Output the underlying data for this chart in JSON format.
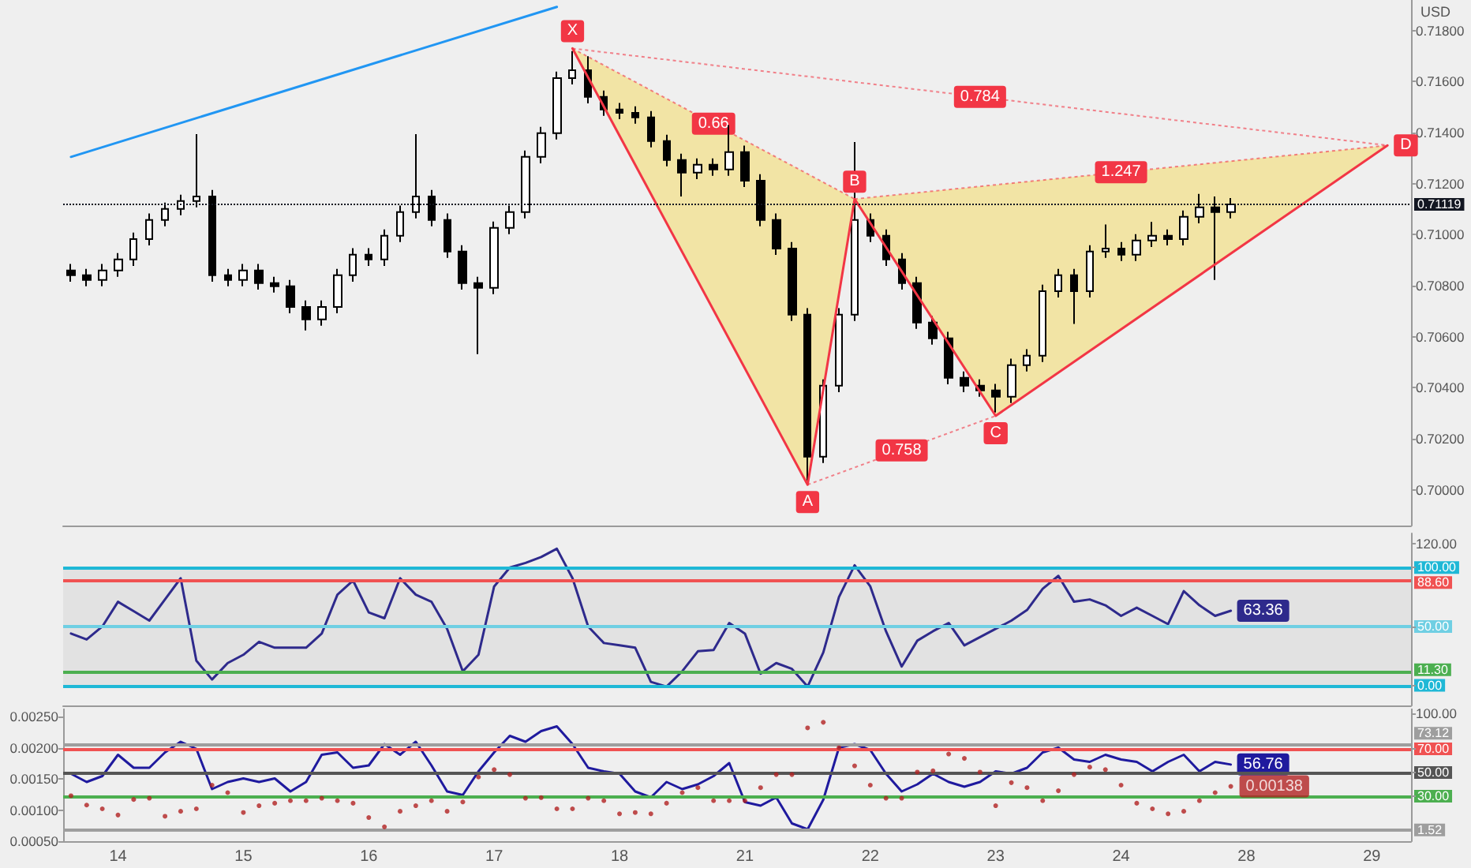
{
  "chart_data": [
    {
      "type": "candlestick",
      "ylabel": "USD",
      "categories": [
        null,
        null,
        null,
        "14",
        null,
        null,
        null,
        null,
        null,
        null,
        null,
        "15",
        null,
        null,
        null,
        null,
        null,
        null,
        null,
        "16",
        null,
        null,
        null,
        null,
        null,
        null,
        null,
        "17",
        null,
        null,
        null,
        null,
        null,
        null,
        null,
        "18",
        null,
        null,
        null,
        null,
        null,
        null,
        null,
        "21",
        null,
        null,
        null,
        null,
        null,
        null,
        null,
        "22",
        null,
        null,
        null,
        null,
        null,
        null,
        null,
        "23",
        null,
        null,
        null,
        null,
        null,
        null,
        null,
        "24",
        null,
        null,
        null,
        null,
        null,
        null,
        null,
        "28",
        null,
        null,
        null,
        null,
        null,
        null,
        null,
        "29",
        null,
        null
      ],
      "series": [
        {
          "type": "candlestick",
          "color": "#000000",
          "ohlc": [
            [
              0.7086,
              0.70885,
              0.70816,
              0.70841
            ],
            [
              0.70841,
              0.70866,
              0.70798,
              0.70823
            ],
            [
              0.70823,
              0.70885,
              0.70798,
              0.7086
            ],
            [
              0.7086,
              0.70928,
              0.70835,
              0.70903
            ],
            [
              0.70903,
              0.71008,
              0.70878,
              0.70983
            ],
            [
              0.70983,
              0.71083,
              0.70958,
              0.71058
            ],
            [
              0.71058,
              0.71126,
              0.71033,
              0.71101
            ],
            [
              0.71101,
              0.71157,
              0.71076,
              0.71132
            ],
            [
              0.71132,
              0.71394,
              0.71107,
              0.7115
            ],
            [
              0.7115,
              0.71175,
              0.70816,
              0.70841
            ],
            [
              0.70841,
              0.70866,
              0.70798,
              0.70823
            ],
            [
              0.70823,
              0.70885,
              0.70798,
              0.7086
            ],
            [
              0.7086,
              0.70885,
              0.70785,
              0.7081
            ],
            [
              0.7081,
              0.70835,
              0.70773,
              0.70798
            ],
            [
              0.70798,
              0.70823,
              0.70692,
              0.70717
            ],
            [
              0.70717,
              0.70742,
              0.70625,
              0.70668
            ],
            [
              0.70668,
              0.70742,
              0.70643,
              0.70717
            ],
            [
              0.70717,
              0.70866,
              0.70692,
              0.70841
            ],
            [
              0.70841,
              0.70947,
              0.70816,
              0.70922
            ],
            [
              0.70922,
              0.70947,
              0.70878,
              0.70903
            ],
            [
              0.70903,
              0.71021,
              0.70878,
              0.70996
            ],
            [
              0.70996,
              0.71114,
              0.70971,
              0.71089
            ],
            [
              0.71089,
              0.71394,
              0.71064,
              0.7115
            ],
            [
              0.7115,
              0.71175,
              0.71033,
              0.71058
            ],
            [
              0.71058,
              0.71083,
              0.70909,
              0.70934
            ],
            [
              0.70934,
              0.70959,
              0.70785,
              0.7081
            ],
            [
              0.7081,
              0.70835,
              0.70532,
              0.70792
            ],
            [
              0.70792,
              0.71052,
              0.70767,
              0.71027
            ],
            [
              0.71027,
              0.71114,
              0.71002,
              0.71089
            ],
            [
              0.71089,
              0.7133,
              0.71064,
              0.71305
            ],
            [
              0.71305,
              0.71423,
              0.7128,
              0.71398
            ],
            [
              0.71398,
              0.71639,
              0.71373,
              0.71614
            ],
            [
              0.71614,
              0.7172,
              0.71589,
              0.71645
            ],
            [
              0.71645,
              0.717,
              0.71515,
              0.7154
            ],
            [
              0.7154,
              0.71565,
              0.71466,
              0.71491
            ],
            [
              0.71491,
              0.71516,
              0.71453,
              0.71478
            ],
            [
              0.71478,
              0.71503,
              0.71435,
              0.7146
            ],
            [
              0.7146,
              0.71485,
              0.71342,
              0.71367
            ],
            [
              0.71367,
              0.71392,
              0.71268,
              0.71293
            ],
            [
              0.71293,
              0.71318,
              0.7115,
              0.71243
            ],
            [
              0.71243,
              0.71299,
              0.71218,
              0.71274
            ],
            [
              0.71274,
              0.71299,
              0.71231,
              0.71256
            ],
            [
              0.71256,
              0.7143,
              0.71231,
              0.71324
            ],
            [
              0.71324,
              0.71349,
              0.71187,
              0.71212
            ],
            [
              0.71212,
              0.71237,
              0.71033,
              0.71058
            ],
            [
              0.71058,
              0.71083,
              0.70921,
              0.70946
            ],
            [
              0.70946,
              0.70971,
              0.70662,
              0.70687
            ],
            [
              0.70687,
              0.70712,
              0.70037,
              0.7013
            ],
            [
              0.7013,
              0.70433,
              0.70105,
              0.70408
            ],
            [
              0.70408,
              0.70712,
              0.70383,
              0.70687
            ],
            [
              0.70687,
              0.71363,
              0.70662,
              0.71058
            ],
            [
              0.71058,
              0.71083,
              0.70971,
              0.70996
            ],
            [
              0.70996,
              0.71021,
              0.70878,
              0.70903
            ],
            [
              0.70903,
              0.70928,
              0.70785,
              0.7081
            ],
            [
              0.7081,
              0.70835,
              0.70631,
              0.70656
            ],
            [
              0.70656,
              0.70681,
              0.70569,
              0.70594
            ],
            [
              0.70594,
              0.70619,
              0.70414,
              0.70439
            ],
            [
              0.70439,
              0.70464,
              0.70383,
              0.70408
            ],
            [
              0.70408,
              0.70433,
              0.70365,
              0.7039
            ],
            [
              0.7039,
              0.70415,
              0.70303,
              0.70365
            ],
            [
              0.70365,
              0.70514,
              0.7034,
              0.70489
            ],
            [
              0.70489,
              0.70551,
              0.70464,
              0.70526
            ],
            [
              0.70526,
              0.70804,
              0.70501,
              0.70779
            ],
            [
              0.70779,
              0.70866,
              0.70754,
              0.70841
            ],
            [
              0.70841,
              0.70866,
              0.7065,
              0.70779
            ],
            [
              0.70779,
              0.70959,
              0.70754,
              0.70934
            ],
            [
              0.70934,
              0.7104,
              0.70909,
              0.70946
            ],
            [
              0.70946,
              0.70971,
              0.70897,
              0.70922
            ],
            [
              0.70922,
              0.71002,
              0.70897,
              0.70977
            ],
            [
              0.70977,
              0.7105,
              0.70952,
              0.70996
            ],
            [
              0.70996,
              0.71021,
              0.70958,
              0.70983
            ],
            [
              0.70983,
              0.71095,
              0.70958,
              0.7107
            ],
            [
              0.7107,
              0.7116,
              0.71045,
              0.71107
            ],
            [
              0.71107,
              0.7115,
              0.70823,
              0.71089
            ],
            [
              0.71089,
              0.71144,
              0.71064,
              0.71119
            ],
            null,
            null,
            null,
            null,
            null,
            null,
            null,
            null,
            null,
            null,
            null
          ]
        },
        {
          "type": "line",
          "color": "#2196f3",
          "values": [
            0.71305,
            null,
            null,
            null,
            null,
            null,
            null,
            null,
            null,
            null,
            null,
            null,
            null,
            null,
            null,
            null,
            null,
            null,
            null,
            null,
            null,
            null,
            null,
            null,
            null,
            null,
            null,
            null,
            null,
            null,
            null,
            0.71893,
            null,
            null,
            null,
            null,
            null,
            null,
            null,
            null,
            null,
            null,
            null,
            null,
            null,
            null,
            null,
            null,
            null,
            null,
            null,
            null,
            null,
            null,
            null,
            null,
            null,
            null,
            null,
            null,
            null,
            null,
            null,
            null,
            null,
            null,
            null,
            null,
            null,
            null,
            null,
            null,
            null,
            null,
            null,
            null,
            null,
            null,
            null,
            null,
            null,
            null,
            null,
            null,
            null,
            null
          ]
        },
        {
          "type": "line",
          "color": "#f23645",
          "values": [
            null,
            null,
            null,
            null,
            null,
            null,
            null,
            null,
            null,
            null,
            null,
            null,
            null,
            null,
            null,
            null,
            null,
            null,
            null,
            null,
            null,
            null,
            null,
            null,
            null,
            null,
            null,
            null,
            null,
            null,
            null,
            null,
            0.7173,
            null,
            null,
            null,
            null,
            null,
            null,
            null,
            null,
            null,
            null,
            null,
            null,
            null,
            null,
            0.7002,
            null,
            null,
            0.7114,
            null,
            null,
            null,
            null,
            null,
            null,
            null,
            null,
            0.7029,
            null,
            null,
            null,
            null,
            null,
            null,
            null,
            null,
            null,
            null,
            null,
            null,
            null,
            null,
            null,
            null,
            null,
            null,
            null,
            null,
            null,
            null,
            null,
            null,
            0.7135,
            null
          ],
          "value_labels": [
            null,
            null,
            null,
            null,
            null,
            null,
            null,
            null,
            null,
            null,
            null,
            null,
            null,
            null,
            null,
            null,
            null,
            null,
            null,
            null,
            null,
            null,
            null,
            null,
            null,
            null,
            null,
            null,
            null,
            null,
            null,
            null,
            "X",
            null,
            null,
            null,
            null,
            null,
            null,
            null,
            null,
            null,
            null,
            null,
            null,
            null,
            null,
            "A",
            null,
            null,
            "B",
            null,
            null,
            null,
            null,
            null,
            null,
            null,
            null,
            "C",
            null,
            null,
            null,
            null,
            null,
            null,
            null,
            null,
            null,
            null,
            null,
            null,
            null,
            null,
            null,
            null,
            null,
            null,
            null,
            null,
            null,
            null,
            null,
            null,
            "D",
            null
          ]
        }
      ],
      "annotations": [
        "0.66",
        "0.784",
        "0.758",
        "1.247"
      ],
      "ylim": [
        0.6986,
        0.7192
      ],
      "yticks": [
        {
          "value": 0.7,
          "label": "0.70000"
        },
        {
          "value": 0.702,
          "label": "0.70200"
        },
        {
          "value": 0.704,
          "label": "0.70400"
        },
        {
          "value": 0.706,
          "label": "0.70600"
        },
        {
          "value": 0.708,
          "label": "0.70800"
        },
        {
          "value": 0.71,
          "label": "0.71000"
        },
        {
          "value": 0.712,
          "label": "0.71200"
        },
        {
          "value": 0.714,
          "label": "0.71400"
        },
        {
          "value": 0.716,
          "label": "0.71600"
        },
        {
          "value": 0.718,
          "label": "0.71800"
        }
      ],
      "ref_lines": [
        {
          "axis": "y",
          "value": 0.71119,
          "label": "0.71119",
          "color": "#131722",
          "line_style": "dotted"
        }
      ],
      "tick_labels": "y"
    },
    {
      "type": "line",
      "categories": [
        null,
        null,
        null,
        "14",
        null,
        null,
        null,
        null,
        null,
        null,
        null,
        "15",
        null,
        null,
        null,
        null,
        null,
        null,
        null,
        "16",
        null,
        null,
        null,
        null,
        null,
        null,
        null,
        "17",
        null,
        null,
        null,
        null,
        null,
        null,
        null,
        "18",
        null,
        null,
        null,
        null,
        null,
        null,
        null,
        "21",
        null,
        null,
        null,
        null,
        null,
        null,
        null,
        "22",
        null,
        null,
        null,
        null,
        null,
        null,
        null,
        "23",
        null,
        null,
        null,
        null,
        null,
        null,
        null,
        "24",
        null,
        null,
        null,
        null,
        null,
        null,
        null,
        "28",
        null,
        null,
        null,
        null,
        null,
        null,
        null,
        "29",
        null,
        null
      ],
      "series": [
        {
          "color": "#2e2a8c",
          "values": [
            44,
            39,
            50,
            71,
            63,
            55,
            73,
            91,
            21,
            5,
            19,
            26,
            37,
            32,
            32,
            32,
            44,
            77,
            89,
            62,
            57,
            91,
            77,
            71,
            48,
            12,
            26,
            84,
            100,
            104,
            109,
            116,
            91,
            50,
            36,
            34,
            32,
            3,
            -1,
            12,
            29,
            30,
            53,
            44,
            10,
            19,
            14,
            -1,
            28,
            75,
            102,
            84,
            46,
            16,
            38,
            46,
            53,
            34,
            41,
            48,
            55,
            64,
            82,
            93,
            71,
            73,
            68,
            59,
            66,
            59,
            52,
            80,
            68,
            59,
            63.36,
            null,
            null,
            null,
            null,
            null,
            null,
            null,
            null,
            null,
            null,
            null
          ],
          "value_labels": [
            null,
            null,
            null,
            null,
            null,
            null,
            null,
            null,
            null,
            null,
            null,
            null,
            null,
            null,
            null,
            null,
            null,
            null,
            null,
            null,
            null,
            null,
            null,
            null,
            null,
            null,
            null,
            null,
            null,
            null,
            null,
            null,
            null,
            null,
            null,
            null,
            null,
            null,
            null,
            null,
            null,
            null,
            null,
            null,
            null,
            null,
            null,
            null,
            null,
            null,
            null,
            null,
            null,
            null,
            null,
            null,
            null,
            null,
            null,
            null,
            null,
            null,
            null,
            null,
            null,
            null,
            null,
            null,
            null,
            null,
            null,
            null,
            null,
            null,
            "63.36",
            null,
            null,
            null,
            null,
            null,
            null,
            null,
            null,
            null,
            null,
            null
          ]
        }
      ],
      "ylim": [
        -17,
        129
      ],
      "yticks": [
        {
          "value": 0,
          "label": "0.00"
        },
        {
          "value": 50,
          "label": "50.00"
        },
        {
          "value": 100,
          "label": "100.00"
        },
        {
          "value": 120,
          "label": "120.00"
        }
      ],
      "ref_lines": [
        {
          "axis": "y",
          "value": 100,
          "label": null,
          "color": "#1fb8d6"
        },
        {
          "axis": "y",
          "value": 88.6,
          "label": "88.60",
          "color": "#f05252"
        },
        {
          "axis": "y",
          "value": 50,
          "label": null,
          "color": "#6fcfe3"
        },
        {
          "axis": "y",
          "value": 11.3,
          "label": "11.30",
          "color": "#4caf50"
        },
        {
          "axis": "y",
          "value": 0,
          "label": null,
          "color": "#1fb8d6"
        }
      ],
      "bands": [
        {
          "axis": "y",
          "from": 0,
          "to": 100,
          "color": "#e2e2e2"
        }
      ],
      "tick_labels": "y"
    },
    {
      "type": "line",
      "categories": [
        null,
        null,
        null,
        "14",
        null,
        null,
        null,
        null,
        null,
        null,
        null,
        "15",
        null,
        null,
        null,
        null,
        null,
        null,
        null,
        "16",
        null,
        null,
        null,
        null,
        null,
        null,
        null,
        "17",
        null,
        null,
        null,
        null,
        null,
        null,
        null,
        "18",
        null,
        null,
        null,
        null,
        null,
        null,
        null,
        "21",
        null,
        null,
        null,
        null,
        null,
        null,
        null,
        "22",
        null,
        null,
        null,
        null,
        null,
        null,
        null,
        "23",
        null,
        null,
        null,
        null,
        null,
        null,
        null,
        "24",
        null,
        null,
        null,
        null,
        null,
        null,
        null,
        "28",
        null,
        null,
        null,
        null,
        null,
        null,
        null,
        "29",
        null,
        null
      ],
      "series": [
        {
          "type": "scatter",
          "color": "#b22222",
          "marker": "circle",
          "values": [
            0.00123,
            0.00108,
            0.00102,
            0.00092,
            0.00117,
            0.00119,
            0.0009,
            0.00098,
            0.00102,
            0.0014,
            0.00128,
            0.00096,
            0.00107,
            0.00111,
            0.00115,
            0.00115,
            0.00119,
            0.00115,
            0.00111,
            0.00088,
            0.00073,
            0.00098,
            0.00107,
            0.00115,
            0.00098,
            0.00113,
            0.00153,
            0.00165,
            0.00157,
            0.00119,
            0.0012,
            0.00102,
            0.00102,
            0.00119,
            0.00115,
            0.00094,
            0.00096,
            0.00094,
            0.00111,
            0.00128,
            0.00136,
            0.00115,
            0.00115,
            0.00115,
            0.00136,
            0.00157,
            0.00157,
            0.00232,
            0.00241,
            0.002,
            0.00171,
            0.0014,
            0.00119,
            0.00119,
            0.00161,
            0.00163,
            0.0019,
            0.00183,
            0.00161,
            0.00107,
            0.00144,
            0.00136,
            0.00115,
            0.00131,
            0.00157,
            0.00169,
            0.00165,
            0.0014,
            0.00111,
            0.00102,
            0.00094,
            0.00098,
            0.00115,
            0.00128,
            0.00138,
            null,
            null,
            null,
            null,
            null,
            null,
            null,
            null,
            null,
            null,
            null
          ],
          "value_labels": [
            null,
            null,
            null,
            null,
            null,
            null,
            null,
            null,
            null,
            null,
            null,
            null,
            null,
            null,
            null,
            null,
            null,
            null,
            null,
            null,
            null,
            null,
            null,
            null,
            null,
            null,
            null,
            null,
            null,
            null,
            null,
            null,
            null,
            null,
            null,
            null,
            null,
            null,
            null,
            null,
            null,
            null,
            null,
            null,
            null,
            null,
            null,
            null,
            null,
            null,
            null,
            null,
            null,
            null,
            null,
            null,
            null,
            null,
            null,
            null,
            null,
            null,
            null,
            null,
            null,
            null,
            null,
            null,
            null,
            null,
            null,
            null,
            null,
            null,
            "0.00138",
            null,
            null,
            null,
            null,
            null,
            null,
            null,
            null,
            null,
            null,
            null
          ]
        },
        {
          "type": "line",
          "axis": "y2",
          "color": "#1f1a9e",
          "values": [
            49,
            42,
            47,
            65,
            54,
            54,
            67,
            76,
            70,
            36,
            42,
            45,
            42,
            45,
            34,
            42,
            65,
            67,
            54,
            56,
            74,
            65,
            76,
            56,
            34,
            31,
            51,
            67,
            81,
            76,
            85,
            89,
            74,
            54,
            51,
            49,
            34,
            29,
            42,
            36,
            40,
            47,
            58,
            25,
            22,
            29,
            7,
            2,
            27,
            71,
            74,
            69,
            49,
            34,
            40,
            49,
            42,
            38,
            42,
            51,
            49,
            54,
            67,
            71,
            61,
            59,
            65,
            61,
            59,
            51,
            59,
            65,
            51,
            59,
            56.76,
            null,
            null,
            null,
            null,
            null,
            null,
            null,
            null,
            null,
            null,
            null
          ],
          "value_labels": [
            null,
            null,
            null,
            null,
            null,
            null,
            null,
            null,
            null,
            null,
            null,
            null,
            null,
            null,
            null,
            null,
            null,
            null,
            null,
            null,
            null,
            null,
            null,
            null,
            null,
            null,
            null,
            null,
            null,
            null,
            null,
            null,
            null,
            null,
            null,
            null,
            null,
            null,
            null,
            null,
            null,
            null,
            null,
            null,
            null,
            null,
            null,
            null,
            null,
            null,
            null,
            null,
            null,
            null,
            null,
            null,
            null,
            null,
            null,
            null,
            null,
            null,
            null,
            null,
            null,
            null,
            null,
            null,
            null,
            null,
            null,
            null,
            null,
            null,
            "56.76",
            null,
            null,
            null,
            null,
            null,
            null,
            null,
            null,
            null,
            null,
            null
          ]
        }
      ],
      "ylim": [
        0.0005,
        0.00263
      ],
      "yticks": [
        {
          "value": 0.0005,
          "label": "0.00050"
        },
        {
          "value": 0.001,
          "label": "0.00100"
        },
        {
          "value": 0.0015,
          "label": "0.00150"
        },
        {
          "value": 0.002,
          "label": "0.00200"
        },
        {
          "value": 0.0025,
          "label": "0.00250"
        }
      ],
      "y2lim": [
        -8,
        104
      ],
      "y2ticks": [
        {
          "value": 30,
          "label": "30.00"
        },
        {
          "value": 50,
          "label": "50.00"
        },
        {
          "value": 70,
          "label": "70.00"
        },
        {
          "value": 100,
          "label": "100.00"
        }
      ],
      "ref_lines": [
        {
          "axis": "y2",
          "value": 73.12,
          "label": "73.12",
          "color": "#9e9e9e"
        },
        {
          "axis": "y2",
          "value": 70,
          "label": null,
          "color": "#f05252"
        },
        {
          "axis": "y2",
          "value": 50,
          "label": null,
          "color": "#555555"
        },
        {
          "axis": "y2",
          "value": 30,
          "label": null,
          "color": "#4caf50"
        },
        {
          "axis": "y2",
          "value": 1.52,
          "label": "1.52",
          "color": "#9e9e9e"
        }
      ]
    }
  ]
}
